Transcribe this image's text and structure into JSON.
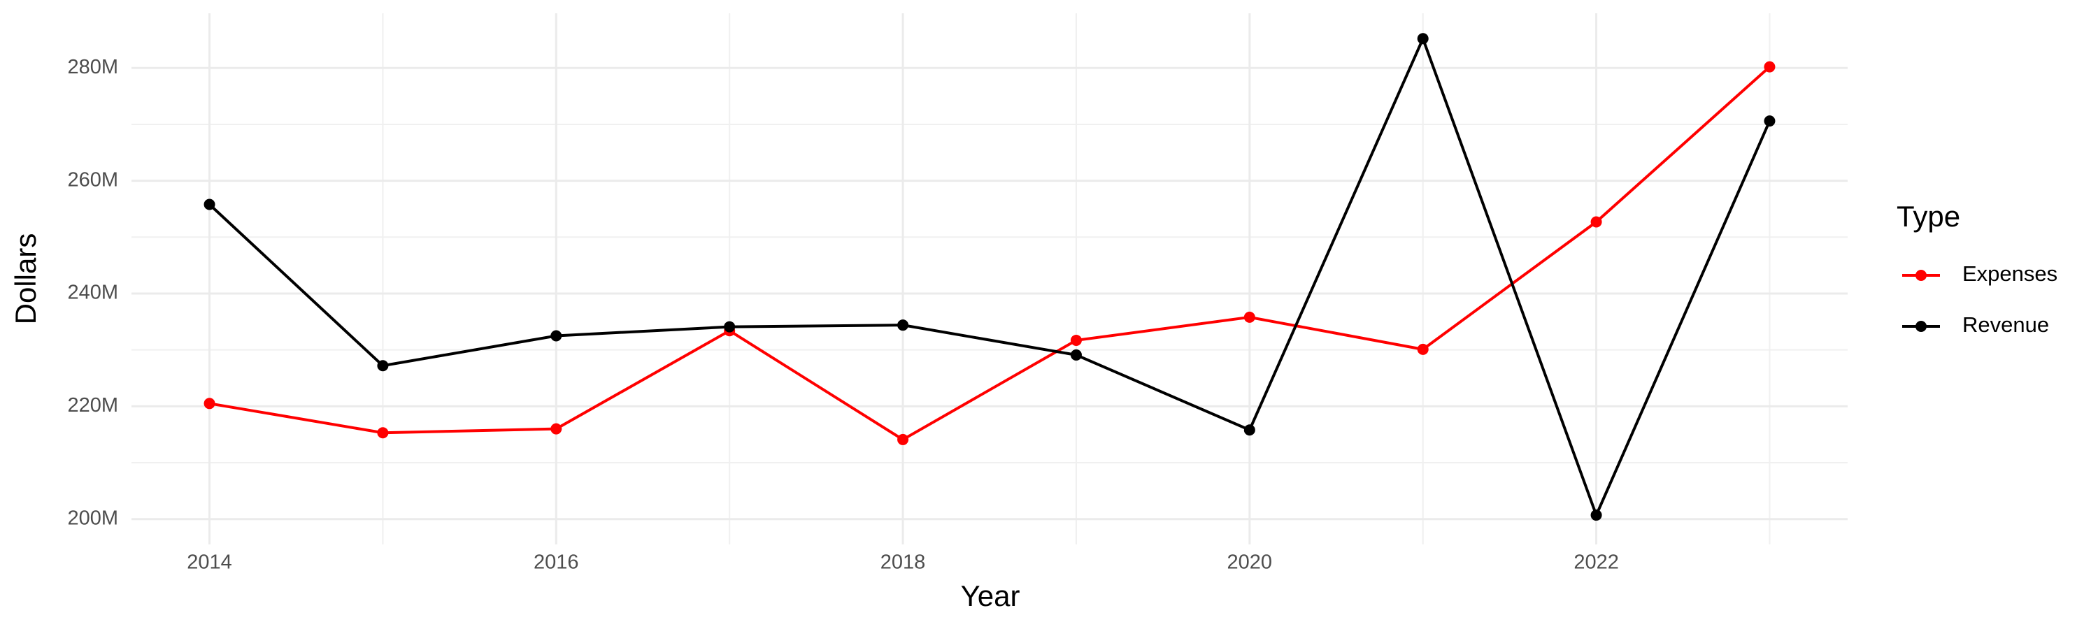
{
  "chart_data": {
    "type": "line",
    "x_label": "Year",
    "y_label": "Dollars",
    "legend_title": "Type",
    "legend_position": "right",
    "grid": true,
    "x": [
      2014,
      2015,
      2016,
      2017,
      2018,
      2019,
      2020,
      2021,
      2022,
      2023
    ],
    "series": [
      {
        "name": "Expenses",
        "color": "#ff0000",
        "values": [
          220500000,
          215300000,
          216000000,
          233400000,
          214100000,
          231700000,
          235800000,
          230100000,
          252700000,
          280200000
        ]
      },
      {
        "name": "Revenue",
        "color": "#000000",
        "values": [
          255800000,
          227200000,
          232500000,
          234100000,
          234400000,
          229100000,
          215800000,
          285200000,
          200700000,
          270600000
        ]
      }
    ],
    "xlim": [
      2013.55,
      2023.45
    ],
    "xticks": [
      2014,
      2016,
      2018,
      2020,
      2022
    ],
    "ylim": [
      195500000,
      289700000
    ],
    "yticks": [
      {
        "value": 200000000,
        "label": "200M"
      },
      {
        "value": 220000000,
        "label": "220M"
      },
      {
        "value": 240000000,
        "label": "240M"
      },
      {
        "value": 260000000,
        "label": "260M"
      },
      {
        "value": 280000000,
        "label": "280M"
      }
    ]
  }
}
